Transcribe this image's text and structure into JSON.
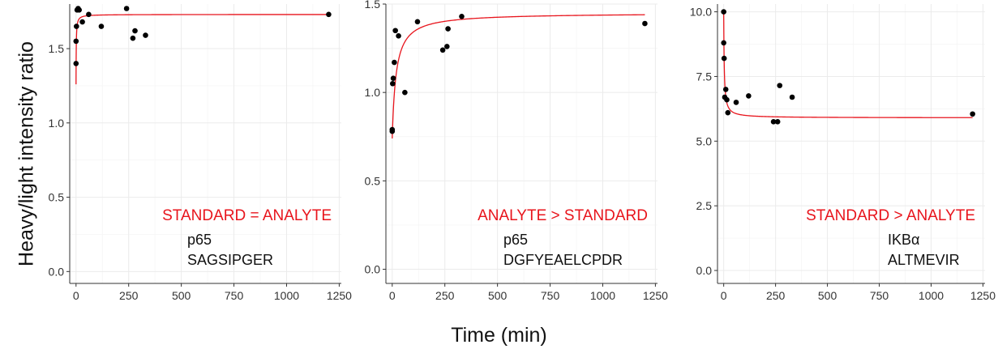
{
  "figure": {
    "ylabel": "Heavy/light intensity ratio",
    "xlabel": "Time (min)"
  },
  "chart_data": [
    {
      "type": "scatter",
      "title": "",
      "xlim": [
        -30,
        1260
      ],
      "ylim": [
        -0.08,
        1.8
      ],
      "xticks": [
        0,
        250,
        500,
        750,
        1000,
        1250
      ],
      "yticks": [
        0.0,
        0.5,
        1.0,
        1.5
      ],
      "ytick_labels": [
        "0.0",
        "0.5",
        "1.0",
        "1.5"
      ],
      "grid": true,
      "series": [
        {
          "points": [
            [
              0,
              1.4
            ],
            [
              0,
              1.55
            ],
            [
              2,
              1.65
            ],
            [
              5,
              1.76
            ],
            [
              10,
              1.77
            ],
            [
              15,
              1.76
            ],
            [
              30,
              1.68
            ],
            [
              60,
              1.73
            ],
            [
              120,
              1.65
            ],
            [
              240,
              1.77
            ],
            [
              270,
              1.57
            ],
            [
              280,
              1.62
            ],
            [
              330,
              1.59
            ],
            [
              1200,
              1.73
            ]
          ]
        }
      ],
      "fit_curve": {
        "y0": 1.26,
        "yinf": 1.73,
        "half_time": 1.0
      },
      "annotation": "STANDARD = ANALYTE",
      "protein": "p65",
      "peptide": "SAGSIPGER"
    },
    {
      "type": "scatter",
      "title": "",
      "xlim": [
        -30,
        1260
      ],
      "ylim": [
        -0.08,
        1.5
      ],
      "xticks": [
        0,
        250,
        500,
        750,
        1000,
        1250
      ],
      "yticks": [
        0.0,
        0.5,
        1.0,
        1.5
      ],
      "ytick_labels": [
        "0.0",
        "0.5",
        "1.0",
        "1.5"
      ],
      "grid": true,
      "series": [
        {
          "points": [
            [
              0,
              0.78
            ],
            [
              0,
              0.79
            ],
            [
              2,
              1.05
            ],
            [
              5,
              1.08
            ],
            [
              10,
              1.17
            ],
            [
              15,
              1.35
            ],
            [
              30,
              1.32
            ],
            [
              60,
              1.0
            ],
            [
              120,
              1.4
            ],
            [
              240,
              1.24
            ],
            [
              260,
              1.26
            ],
            [
              265,
              1.36
            ],
            [
              330,
              1.43
            ],
            [
              1200,
              1.39
            ]
          ]
        }
      ],
      "fit_curve": {
        "y0": 0.74,
        "yinf": 1.45,
        "half_time": 18
      },
      "annotation": "ANALYTE > STANDARD",
      "protein": "p65",
      "peptide": "DGFYEAELCPDR"
    },
    {
      "type": "scatter",
      "title": "",
      "xlim": [
        -30,
        1260
      ],
      "ylim": [
        -0.5,
        10.3
      ],
      "xticks": [
        0,
        250,
        500,
        750,
        1000,
        1250
      ],
      "yticks": [
        0.0,
        2.5,
        5.0,
        7.5,
        10.0
      ],
      "ytick_labels": [
        "0.0",
        "2.5",
        "5.0",
        "7.5",
        "10.0"
      ],
      "grid": true,
      "series": [
        {
          "points": [
            [
              0,
              10.0
            ],
            [
              0,
              8.8
            ],
            [
              2,
              8.2
            ],
            [
              5,
              6.7
            ],
            [
              10,
              7.0
            ],
            [
              15,
              6.6
            ],
            [
              20,
              6.1
            ],
            [
              60,
              6.5
            ],
            [
              120,
              6.75
            ],
            [
              240,
              5.75
            ],
            [
              260,
              5.75
            ],
            [
              270,
              7.15
            ],
            [
              330,
              6.7
            ],
            [
              1200,
              6.05
            ]
          ]
        }
      ],
      "fit_curve": {
        "y0": 10.0,
        "yinf": 5.9,
        "half_time": 2.5
      },
      "annotation": "STANDARD > ANALYTE",
      "protein": "IKBα",
      "peptide": "ALTMEVIR"
    }
  ],
  "colors": {
    "points": "#000000",
    "fit_line": "#e8141c",
    "annotation": "#e8141c",
    "grid": "#ebebeb",
    "axis": "#333333",
    "text": "#111111"
  }
}
